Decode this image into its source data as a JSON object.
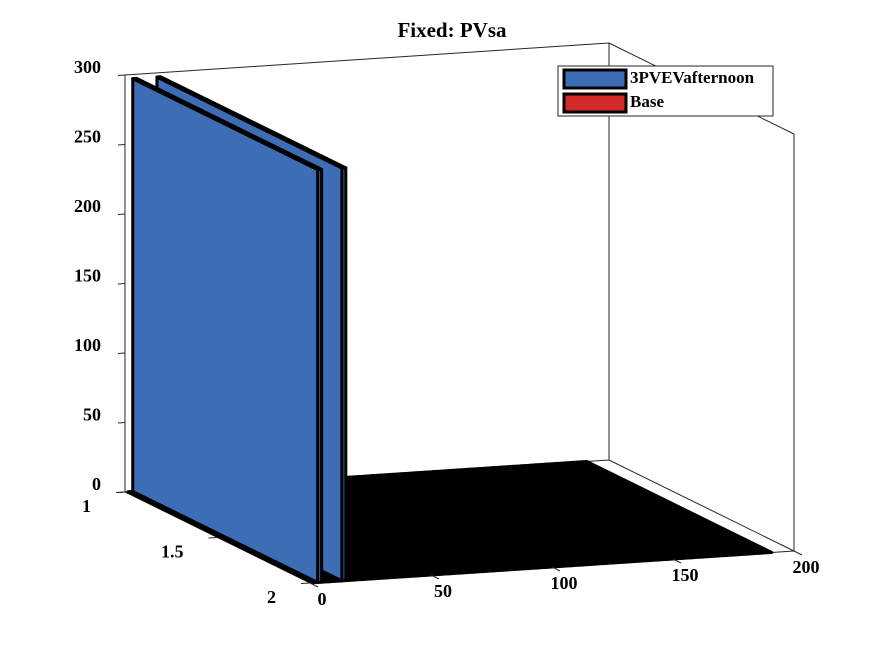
{
  "chart_data": {
    "type": "bar3",
    "title": "Fixed: PVsa",
    "xlim": [
      0,
      200
    ],
    "ylim": [
      1,
      2
    ],
    "zlim": [
      0,
      300
    ],
    "xticks": [
      0,
      50,
      100,
      150,
      200
    ],
    "yticks": [
      1,
      1.5,
      2
    ],
    "zticks": [
      0,
      50,
      100,
      150,
      200,
      250,
      300
    ],
    "legend": "top-right",
    "series": [
      {
        "name": "3PVEVafternoon",
        "color": "#3d6db5",
        "x": [
          2,
          4,
          6,
          8,
          10,
          12,
          14,
          16,
          18,
          20,
          22,
          24,
          26,
          28,
          30,
          32,
          34,
          36,
          38,
          40,
          42,
          44,
          46,
          48,
          50,
          52,
          54,
          56,
          58,
          60,
          62,
          64,
          66,
          68,
          70,
          72,
          74,
          76,
          78,
          80,
          82,
          84,
          86,
          88,
          90,
          92,
          94,
          96,
          98,
          100,
          102,
          104,
          106,
          108,
          110,
          112,
          114,
          116,
          118,
          120,
          122,
          124,
          126,
          128,
          130,
          132,
          134,
          136,
          138,
          140,
          142,
          144,
          146,
          148,
          150,
          152,
          154,
          156,
          158,
          160,
          162,
          164,
          166,
          168,
          170,
          172,
          174,
          176,
          178,
          180,
          182,
          184,
          186,
          188,
          190
        ],
        "values": [
          0,
          297,
          0,
          0,
          0,
          0,
          297,
          0,
          0,
          0,
          0,
          0,
          0,
          0,
          0,
          0,
          0,
          0,
          0,
          0,
          0,
          0,
          0,
          0,
          0,
          0,
          0,
          0,
          0,
          0,
          0,
          0,
          0,
          0,
          0,
          0,
          0,
          0,
          0,
          0,
          0,
          0,
          0,
          0,
          0,
          0,
          0,
          0,
          0,
          0,
          0,
          0,
          0,
          0,
          0,
          0,
          0,
          0,
          0,
          0,
          0,
          0,
          0,
          0,
          0,
          0,
          0,
          0,
          0,
          0,
          0,
          0,
          0,
          0,
          0,
          0,
          0,
          0,
          0,
          0,
          0,
          0,
          0,
          0,
          0,
          0,
          0,
          0,
          0,
          0,
          0,
          0,
          0,
          0,
          0
        ]
      },
      {
        "name": "Base",
        "color": "#d42a2a"
      }
    ]
  }
}
